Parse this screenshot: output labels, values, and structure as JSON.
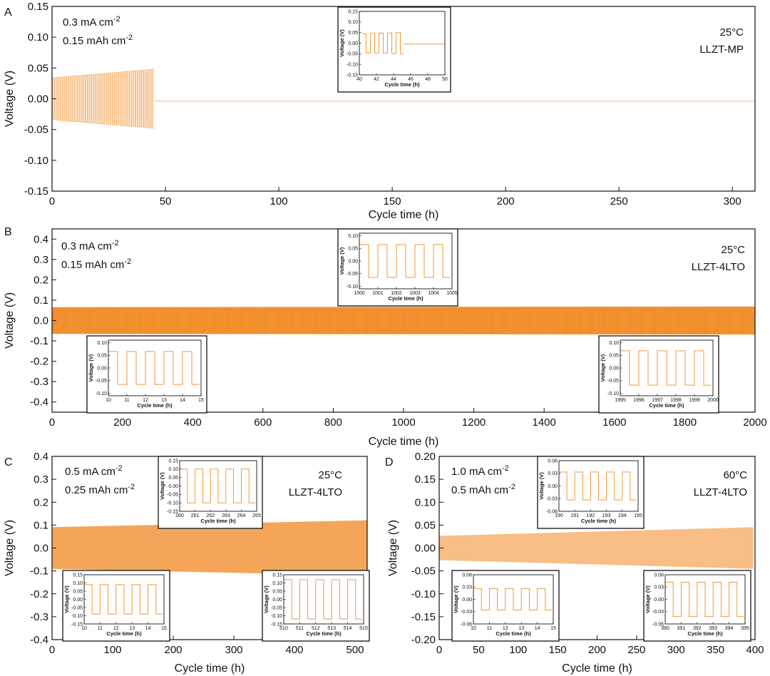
{
  "chart_data": [
    {
      "panel": "A",
      "type": "line",
      "title": "",
      "xlabel": "Cycle time (h)",
      "ylabel": "Voltage (V)",
      "xlim": [
        0,
        310
      ],
      "ylim": [
        -0.15,
        0.15
      ],
      "xticks": [
        0,
        50,
        100,
        150,
        200,
        250,
        300
      ],
      "yticks": [
        0.15,
        0.1,
        0.05,
        0.0,
        -0.05,
        -0.1,
        -0.15
      ],
      "ytick_labels": [
        "0.15",
        "0.10",
        "0.05",
        "0.00",
        "-0.05",
        "-0.10",
        "-0.15"
      ],
      "annotation_left": [
        "0.3 mA cm",
        "0.15 mAh cm"
      ],
      "annotation_left_sup": [
        "-2",
        "-2"
      ],
      "annotation_right": [
        "25°C",
        "LLZT-MP"
      ],
      "grid": false,
      "color": "#F08A24",
      "trace": {
        "kind": "square-wave",
        "segments": [
          {
            "x_start": 0,
            "x_end": 45,
            "amp_start": 0.034,
            "amp_end": 0.048,
            "period": 1.0
          },
          {
            "x_start": 45,
            "x_end": 310,
            "flat": -0.004
          }
        ]
      },
      "insets": [
        {
          "xlabel": "Cycle time (h)",
          "ylabel": "Voltage (V)",
          "xlim": [
            40,
            50
          ],
          "ylim": [
            -0.15,
            0.15
          ],
          "xticks": [
            40,
            42,
            44,
            46,
            48,
            50
          ],
          "yticks": [
            0.15,
            0.1,
            0.05,
            0.0,
            -0.05,
            -0.1,
            -0.15
          ],
          "ytick_labels": [
            "0.15",
            "0.10",
            "0.05",
            "0.00",
            "-0.05",
            "-0.10",
            "-0.15"
          ],
          "trace": {
            "kind": "square-wave",
            "segments": [
              {
                "x_start": 40.3,
                "x_end": 45.2,
                "amp_start": 0.045,
                "amp_end": 0.05,
                "period": 1.0
              },
              {
                "x_start": 45.2,
                "x_end": 50,
                "flat": -0.004
              }
            ]
          }
        }
      ]
    },
    {
      "panel": "B",
      "type": "line",
      "title": "",
      "xlabel": "Cycle time (h)",
      "ylabel": "Voltage (V)",
      "xlim": [
        0,
        2000
      ],
      "ylim": [
        -0.45,
        0.45
      ],
      "xticks": [
        0,
        200,
        400,
        600,
        800,
        1000,
        1200,
        1400,
        1600,
        1800,
        2000
      ],
      "yticks": [
        0.4,
        0.3,
        0.2,
        0.1,
        0.0,
        -0.1,
        -0.2,
        -0.3,
        -0.4
      ],
      "ytick_labels": [
        "0.4",
        "0.3",
        "0.2",
        "0.1",
        "0.0",
        "-0.1",
        "-0.2",
        "-0.3",
        "-0.4"
      ],
      "annotation_left": [
        "0.3 mA cm",
        "0.15 mAh cm"
      ],
      "annotation_left_sup": [
        "-2",
        "-2"
      ],
      "annotation_right": [
        "25°C",
        "LLZT-4LTO"
      ],
      "grid": false,
      "color": "#F08A24",
      "trace": {
        "kind": "square-wave",
        "segments": [
          {
            "x_start": 0,
            "x_end": 2000,
            "amp_start": 0.065,
            "amp_end": 0.068,
            "period": 1.0
          }
        ]
      },
      "insets": [
        {
          "xlabel": "Cycle time (h)",
          "ylabel": "Voltage (V)",
          "xlim": [
            1000,
            1005
          ],
          "ylim": [
            -0.11,
            0.11
          ],
          "xticks": [
            1000,
            1001,
            1002,
            1003,
            1004,
            1005
          ],
          "yticks": [
            0.1,
            0.05,
            0.0,
            -0.05,
            -0.1
          ],
          "ytick_labels": [
            "0.10",
            "0.05",
            "0.00",
            "-0.05",
            "-0.10"
          ],
          "trace": {
            "kind": "square-wave",
            "segments": [
              {
                "x_start": 1000,
                "x_end": 1004.9,
                "amp_start": 0.065,
                "amp_end": 0.065,
                "period": 1.0
              }
            ]
          }
        },
        {
          "xlabel": "Cycle time (h)",
          "ylabel": "Voltage (V)",
          "xlim": [
            10,
            15
          ],
          "ylim": [
            -0.11,
            0.11
          ],
          "xticks": [
            10,
            11,
            12,
            13,
            14,
            15
          ],
          "yticks": [
            0.1,
            0.05,
            0.0,
            -0.05,
            -0.1
          ],
          "ytick_labels": [
            "0.10",
            "0.05",
            "0.00",
            "-0.05",
            "-0.10"
          ],
          "trace": {
            "kind": "square-wave",
            "segments": [
              {
                "x_start": 10,
                "x_end": 14.9,
                "amp_start": 0.065,
                "amp_end": 0.065,
                "period": 1.0
              }
            ]
          }
        },
        {
          "xlabel": "Cycle time (h)",
          "ylabel": "Voltage (V)",
          "xlim": [
            1995,
            2000
          ],
          "ylim": [
            -0.11,
            0.11
          ],
          "xticks": [
            1995,
            1996,
            1997,
            1998,
            1999,
            2000
          ],
          "yticks": [
            0.1,
            0.05,
            0.0,
            -0.05,
            -0.1
          ],
          "ytick_labels": [
            "0.10",
            "0.05",
            "0.00",
            "-0.05",
            "-0.10"
          ],
          "trace": {
            "kind": "square-wave",
            "segments": [
              {
                "x_start": 1995,
                "x_end": 1999.9,
                "amp_start": 0.068,
                "amp_end": 0.068,
                "period": 1.0
              }
            ]
          }
        }
      ]
    },
    {
      "panel": "C",
      "type": "line",
      "title": "",
      "xlabel": "Cycle time (h)",
      "ylabel": "Voltage (V)",
      "xlim": [
        0,
        520
      ],
      "ylim": [
        -0.4,
        0.4
      ],
      "xticks": [
        0,
        100,
        200,
        300,
        400,
        500
      ],
      "yticks": [
        0.4,
        0.3,
        0.2,
        0.1,
        0.0,
        -0.1,
        -0.2,
        -0.3,
        -0.4
      ],
      "ytick_labels": [
        "0.4",
        "0.3",
        "0.2",
        "0.1",
        "0.0",
        "-0.1",
        "-0.2",
        "-0.3",
        "-0.4"
      ],
      "annotation_left": [
        "0.5 mA cm",
        "0.25 mAh cm"
      ],
      "annotation_left_sup": [
        "-2",
        "-2"
      ],
      "annotation_right": [
        "25°C",
        "LLZT-4LTO"
      ],
      "grid": false,
      "color": "#F5A55A",
      "trace": {
        "kind": "square-wave",
        "segments": [
          {
            "x_start": 0,
            "x_end": 520,
            "amp_start": 0.09,
            "amp_end": 0.12,
            "period": 1.0
          }
        ]
      },
      "insets": [
        {
          "xlabel": "Cycle time (h)",
          "ylabel": "Voltage (V)",
          "xlim": [
            260,
            265
          ],
          "ylim": [
            -0.15,
            0.15
          ],
          "xticks": [
            260,
            261,
            262,
            263,
            264,
            265
          ],
          "yticks": [
            0.15,
            0.1,
            0.05,
            0.0,
            -0.05,
            -0.1,
            -0.15
          ],
          "ytick_labels": [
            "0.15",
            "0.10",
            "0.05",
            "0.00",
            "-0.05",
            "-0.10",
            "-0.15"
          ],
          "trace": {
            "kind": "square-wave",
            "segments": [
              {
                "x_start": 260,
                "x_end": 264.9,
                "amp_start": 0.1,
                "amp_end": 0.1,
                "period": 1.0
              }
            ]
          }
        },
        {
          "xlabel": "Cycle time (h)",
          "ylabel": "Voltage (V)",
          "xlim": [
            10,
            15
          ],
          "ylim": [
            -0.15,
            0.15
          ],
          "xticks": [
            10,
            11,
            12,
            13,
            14,
            15
          ],
          "yticks": [
            0.15,
            0.1,
            0.05,
            0.0,
            -0.05,
            -0.1,
            -0.15
          ],
          "ytick_labels": [
            "0.15",
            "0.10",
            "0.05",
            "0.00",
            "-0.05",
            "-0.10",
            "-0.15"
          ],
          "trace": {
            "kind": "square-wave",
            "segments": [
              {
                "x_start": 10,
                "x_end": 14.9,
                "amp_start": 0.09,
                "amp_end": 0.09,
                "period": 1.0
              }
            ]
          }
        },
        {
          "xlabel": "Cycle time (h)",
          "ylabel": "Voltage (V)",
          "xlim": [
            510,
            515
          ],
          "ylim": [
            -0.15,
            0.15
          ],
          "xticks": [
            510,
            511,
            512,
            513,
            514,
            515
          ],
          "yticks": [
            0.15,
            0.1,
            0.05,
            0.0,
            -0.05,
            -0.1,
            -0.15
          ],
          "ytick_labels": [
            "0.15",
            "0.10",
            "0.05",
            "0.00",
            "-0.05",
            "-0.10",
            "-0.15"
          ],
          "trace": {
            "kind": "square-wave",
            "segments": [
              {
                "x_start": 510,
                "x_end": 514.9,
                "amp_start": 0.12,
                "amp_end": 0.12,
                "period": 1.0
              }
            ]
          }
        }
      ]
    },
    {
      "panel": "D",
      "type": "line",
      "title": "",
      "xlabel": "Cycle time (h)",
      "ylabel": "Voltage (V)",
      "xlim": [
        0,
        400
      ],
      "ylim": [
        -0.2,
        0.2
      ],
      "xticks": [
        0,
        50,
        100,
        150,
        200,
        250,
        300,
        350,
        400
      ],
      "yticks": [
        0.2,
        0.15,
        0.1,
        0.05,
        0.0,
        -0.05,
        -0.1,
        -0.15,
        -0.2
      ],
      "ytick_labels": [
        "0.20",
        "0.15",
        "0.10",
        "0.05",
        "0.00",
        "-0.05",
        "-0.10",
        "-0.15",
        "-0.20"
      ],
      "annotation_left": [
        "1.0 mA cm",
        "0.5 mAh cm"
      ],
      "annotation_left_sup": [
        "-2",
        "-2"
      ],
      "annotation_right": [
        "60°C",
        "LLZT-4LTO"
      ],
      "grid": false,
      "color": "#F8BE85",
      "trace": {
        "kind": "square-wave",
        "segments": [
          {
            "x_start": 0,
            "x_end": 398,
            "amp_start": 0.026,
            "amp_end": 0.045,
            "period": 1.0
          }
        ]
      },
      "insets": [
        {
          "xlabel": "Cycle time (h)",
          "ylabel": "Voltage (V)",
          "xlim": [
            190,
            195
          ],
          "ylim": [
            -0.06,
            0.06
          ],
          "xticks": [
            190,
            191,
            192,
            193,
            194,
            195
          ],
          "yticks": [
            0.06,
            0.03,
            0.0,
            -0.03,
            -0.06
          ],
          "ytick_labels": [
            "0.06",
            "0.03",
            "0.00",
            "-0.03",
            "-0.06"
          ],
          "trace": {
            "kind": "square-wave",
            "segments": [
              {
                "x_start": 190,
                "x_end": 194.9,
                "amp_start": 0.033,
                "amp_end": 0.033,
                "period": 1.0
              }
            ]
          }
        },
        {
          "xlabel": "Cycle time (h)",
          "ylabel": "Voltage (V)",
          "xlim": [
            10,
            15
          ],
          "ylim": [
            -0.06,
            0.06
          ],
          "xticks": [
            10,
            11,
            12,
            13,
            14,
            15
          ],
          "yticks": [
            0.06,
            0.03,
            0.0,
            -0.03,
            -0.06
          ],
          "ytick_labels": [
            "0.06",
            "0.03",
            "0.00",
            "-0.03",
            "-0.06"
          ],
          "trace": {
            "kind": "square-wave",
            "segments": [
              {
                "x_start": 10,
                "x_end": 14.9,
                "amp_start": 0.026,
                "amp_end": 0.026,
                "period": 1.0
              }
            ]
          }
        },
        {
          "xlabel": "Cycle time (h)",
          "ylabel": "Voltage (V)",
          "xlim": [
            390,
            395
          ],
          "ylim": [
            -0.06,
            0.06
          ],
          "xticks": [
            390,
            391,
            392,
            393,
            394,
            395
          ],
          "yticks": [
            0.06,
            0.03,
            0.0,
            -0.03,
            -0.06
          ],
          "ytick_labels": [
            "0.06",
            "0.03",
            "0.00",
            "-0.03",
            "-0.06"
          ],
          "trace": {
            "kind": "square-wave",
            "segments": [
              {
                "x_start": 390,
                "x_end": 394.9,
                "amp_start": 0.042,
                "amp_end": 0.042,
                "period": 1.0
              }
            ]
          }
        }
      ]
    }
  ]
}
